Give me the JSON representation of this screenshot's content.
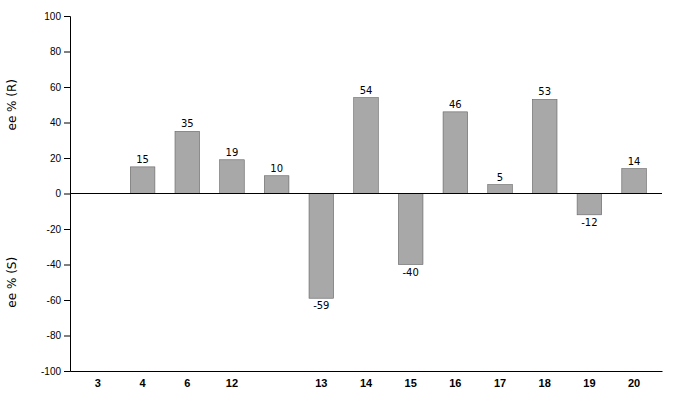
{
  "chart_data": {
    "type": "bar",
    "ylabel_top": "ee % (R)",
    "ylabel_bottom": "ee % (S)",
    "categories": [
      "3",
      "4",
      "6",
      "12",
      null,
      "13",
      "14",
      "15",
      "16",
      "17",
      "18",
      "19",
      "20"
    ],
    "values": [
      0,
      15,
      35,
      19,
      10,
      -59,
      54,
      -40,
      46,
      5,
      53,
      -12,
      14
    ],
    "value_labels": [
      null,
      "15",
      "35",
      "19",
      "10",
      "-59",
      "54",
      "-40",
      "46",
      "5",
      "53",
      "-12",
      "14"
    ],
    "data_labels": true,
    "color": "#a8a8a8",
    "ylim": [
      -100,
      100
    ],
    "yticks": [
      -100,
      -80,
      -60,
      -40,
      -20,
      0,
      20,
      40,
      60,
      80,
      100
    ],
    "grid": false
  }
}
